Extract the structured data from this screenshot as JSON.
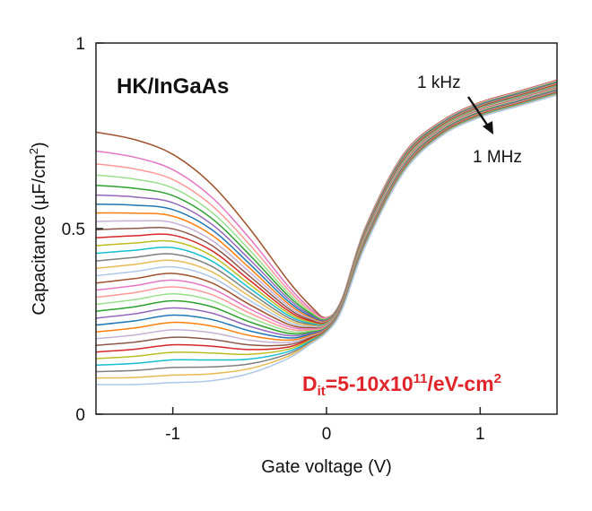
{
  "chart_data": {
    "type": "line",
    "title": "",
    "xlabel": "Gate voltage (V)",
    "ylabel_parts": {
      "text": "Capacitance (µF/cm",
      "sup": "2",
      "close": ")"
    },
    "xlim": [
      -1.5,
      1.5
    ],
    "ylim": [
      0,
      1
    ],
    "xticks": [
      -1,
      0,
      1
    ],
    "xtick_labels": [
      "-1",
      "0",
      "1"
    ],
    "yticks": [
      0,
      0.5,
      1
    ],
    "ytick_labels": [
      "0",
      "0.5",
      "1"
    ],
    "grid": false,
    "annotations": {
      "panel_label": "HK/InGaAs",
      "freq_start": "1 kHz",
      "freq_end": "1 MHz",
      "dit_main": "D",
      "dit_sub": "it",
      "dit_mid": "=5-10x10",
      "dit_sup1": "11",
      "dit_end": "/eV-cm",
      "dit_sup2": "2"
    },
    "curve_count": 32,
    "x": [
      -1.5,
      -1.25,
      -1.0,
      -0.75,
      -0.5,
      -0.25,
      -0.1,
      0.0,
      0.1,
      0.25,
      0.5,
      0.75,
      1.0,
      1.25,
      1.5
    ],
    "series_envelope": {
      "lowest_frequency_1kHz": [
        0.76,
        0.74,
        0.7,
        0.62,
        0.5,
        0.36,
        0.29,
        0.26,
        0.31,
        0.5,
        0.7,
        0.79,
        0.84,
        0.87,
        0.9
      ],
      "highest_frequency_1MHz": [
        0.08,
        0.08,
        0.085,
        0.09,
        0.11,
        0.15,
        0.19,
        0.22,
        0.28,
        0.45,
        0.65,
        0.75,
        0.8,
        0.83,
        0.86
      ]
    },
    "colors": [
      "#a0522d",
      "#e377c2",
      "#ff9896",
      "#98df8a",
      "#2ca02c",
      "#9467bd",
      "#1f77b4",
      "#ff7f0e",
      "#c5b0d5",
      "#8c564b",
      "#d62728",
      "#bcbd22",
      "#17becf",
      "#7f7f7f",
      "#e7ba52",
      "#aec7e8"
    ]
  }
}
